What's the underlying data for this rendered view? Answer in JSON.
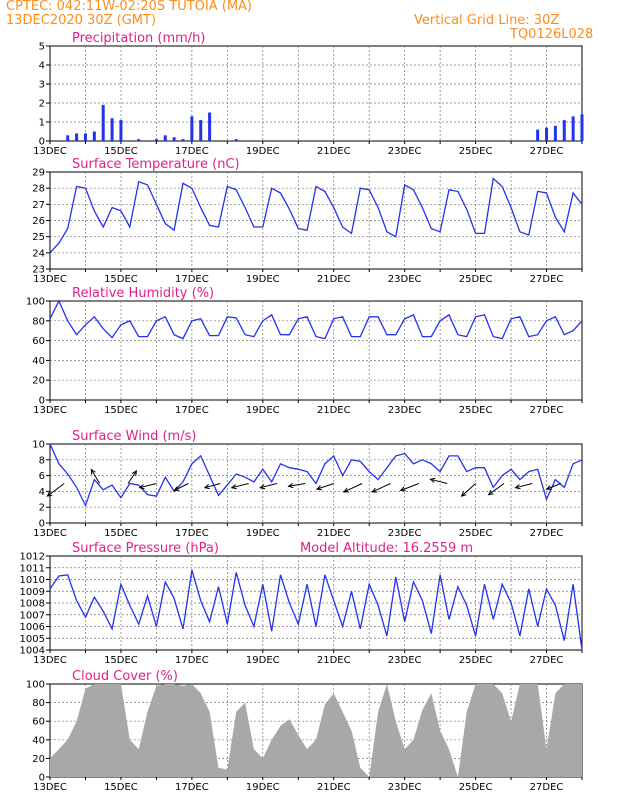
{
  "header": {
    "line1": "CPTEC:   042:11W-02:20S   TUTOIA (MA)",
    "line2": "13DEC2020 30Z (GMT)",
    "grid_note": "Vertical Grid Line: 30Z",
    "code": "TQ0126L028"
  },
  "colors": {
    "line": "#2233ee",
    "cloud": "#a8a8a8",
    "arrow": "#000000",
    "title": "#e0208a",
    "header": "#ff8c1a"
  },
  "chart_data": [
    {
      "id": "precip",
      "type": "bar",
      "title": "Precipitation (mm/h)",
      "ylim": [
        0,
        5
      ],
      "yticks": [
        "0",
        "1",
        "2",
        "3",
        "4",
        "5"
      ],
      "xticks": [
        "13DEC",
        "15DEC",
        "17DEC",
        "19DEC",
        "21DEC",
        "23DEC",
        "25DEC",
        "27DEC"
      ],
      "days": [
        0,
        0.25,
        0.5,
        0.75,
        1,
        1.25,
        1.5,
        1.75,
        2,
        2.25,
        2.5,
        2.75,
        3,
        3.25,
        3.5,
        3.75,
        4,
        4.25,
        4.5,
        4.75,
        5,
        5.25,
        5.5,
        5.75,
        6,
        6.25,
        6.5,
        6.75,
        7,
        7.25,
        7.5,
        7.75,
        8,
        8.25,
        8.5,
        8.75,
        9,
        9.25,
        9.5,
        9.75,
        10,
        10.25,
        10.5,
        10.75,
        11,
        11.25,
        11.5,
        11.75,
        12,
        12.25,
        12.5,
        12.75,
        13,
        13.25,
        13.5,
        13.75,
        14,
        14.25,
        14.5,
        14.75,
        15
      ],
      "values": [
        0,
        0,
        0.3,
        0.4,
        0.4,
        0.5,
        1.9,
        1.2,
        1.1,
        0,
        0.1,
        0,
        0.1,
        0.3,
        0.2,
        0.1,
        1.3,
        1.1,
        1.5,
        0,
        0,
        0.1,
        0,
        0,
        0,
        0,
        0,
        0,
        0,
        0,
        0,
        0,
        0,
        0,
        0,
        0,
        0,
        0,
        0,
        0,
        0,
        0,
        0,
        0,
        0,
        0,
        0,
        0,
        0,
        0,
        0,
        0,
        0,
        0,
        0,
        0.6,
        0.7,
        0.8,
        1.1,
        1.3,
        1.4
      ]
    },
    {
      "id": "temp",
      "type": "line",
      "title": "Surface Temperature (nC)",
      "ylim": [
        23,
        29
      ],
      "yticks": [
        "23",
        "24",
        "25",
        "26",
        "27",
        "28",
        "29"
      ],
      "xticks": [
        "13DEC",
        "15DEC",
        "17DEC",
        "19DEC",
        "21DEC",
        "23DEC",
        "25DEC",
        "27DEC"
      ],
      "days": [
        0,
        0.25,
        0.5,
        0.75,
        1,
        1.25,
        1.5,
        1.75,
        2,
        2.25,
        2.5,
        2.75,
        3,
        3.25,
        3.5,
        3.75,
        4,
        4.25,
        4.5,
        4.75,
        5,
        5.25,
        5.5,
        5.75,
        6,
        6.25,
        6.5,
        6.75,
        7,
        7.25,
        7.5,
        7.75,
        8,
        8.25,
        8.5,
        8.75,
        9,
        9.25,
        9.5,
        9.75,
        10,
        10.25,
        10.5,
        10.75,
        11,
        11.25,
        11.5,
        11.75,
        12,
        12.25,
        12.5,
        12.75,
        13,
        13.25,
        13.5,
        13.75,
        14,
        14.25,
        14.5,
        14.75,
        15
      ],
      "values": [
        24.0,
        24.6,
        25.5,
        28.1,
        28.0,
        26.6,
        25.6,
        26.8,
        26.6,
        25.6,
        28.4,
        28.2,
        27.0,
        25.8,
        25.4,
        28.3,
        28.0,
        26.8,
        25.7,
        25.6,
        28.1,
        27.9,
        26.8,
        25.6,
        25.6,
        28.0,
        27.7,
        26.7,
        25.5,
        25.4,
        28.1,
        27.8,
        26.8,
        25.6,
        25.2,
        28.0,
        27.9,
        26.8,
        25.3,
        25.0,
        28.2,
        27.9,
        26.8,
        25.5,
        25.3,
        27.9,
        27.8,
        26.7,
        25.2,
        25.2,
        28.6,
        28.1,
        26.8,
        25.3,
        25.1,
        27.8,
        27.7,
        26.2,
        25.3,
        27.7,
        27.0
      ]
    },
    {
      "id": "rh",
      "type": "line",
      "title": "Relative Humidity (%)",
      "ylim": [
        0,
        100
      ],
      "yticks": [
        "0",
        "20",
        "40",
        "60",
        "80",
        "100"
      ],
      "xticks": [
        "13DEC",
        "15DEC",
        "17DEC",
        "19DEC",
        "21DEC",
        "23DEC",
        "25DEC",
        "27DEC"
      ],
      "days": [
        0,
        0.25,
        0.5,
        0.75,
        1,
        1.25,
        1.5,
        1.75,
        2,
        2.25,
        2.5,
        2.75,
        3,
        3.25,
        3.5,
        3.75,
        4,
        4.25,
        4.5,
        4.75,
        5,
        5.25,
        5.5,
        5.75,
        6,
        6.25,
        6.5,
        6.75,
        7,
        7.25,
        7.5,
        7.75,
        8,
        8.25,
        8.5,
        8.75,
        9,
        9.25,
        9.5,
        9.75,
        10,
        10.25,
        10.5,
        10.75,
        11,
        11.25,
        11.5,
        11.75,
        12,
        12.25,
        12.5,
        12.75,
        13,
        13.25,
        13.5,
        13.75,
        14,
        14.25,
        14.5,
        14.75,
        15
      ],
      "values": [
        82,
        100,
        80,
        66,
        76,
        84,
        72,
        63,
        76,
        80,
        64,
        64,
        80,
        84,
        66,
        62,
        80,
        82,
        65,
        65,
        84,
        83,
        66,
        64,
        80,
        86,
        66,
        66,
        82,
        84,
        64,
        62,
        82,
        84,
        64,
        64,
        84,
        84,
        66,
        66,
        82,
        86,
        64,
        64,
        80,
        86,
        66,
        64,
        84,
        86,
        64,
        62,
        82,
        84,
        64,
        66,
        80,
        84,
        66,
        70,
        80
      ]
    },
    {
      "id": "wind",
      "type": "line",
      "title": "Surface Wind (m/s)",
      "ylim": [
        0,
        10
      ],
      "yticks": [
        "0",
        "2",
        "4",
        "6",
        "8",
        "10"
      ],
      "xticks": [
        "13DEC",
        "15DEC",
        "17DEC",
        "19DEC",
        "21DEC",
        "23DEC",
        "25DEC",
        "27DEC"
      ],
      "days": [
        0,
        0.25,
        0.5,
        0.75,
        1,
        1.25,
        1.5,
        1.75,
        2,
        2.25,
        2.5,
        2.75,
        3,
        3.25,
        3.5,
        3.75,
        4,
        4.25,
        4.5,
        4.75,
        5,
        5.25,
        5.5,
        5.75,
        6,
        6.25,
        6.5,
        6.75,
        7,
        7.25,
        7.5,
        7.75,
        8,
        8.25,
        8.5,
        8.75,
        9,
        9.25,
        9.5,
        9.75,
        10,
        10.25,
        10.5,
        10.75,
        11,
        11.25,
        11.5,
        11.75,
        12,
        12.25,
        12.5,
        12.75,
        13,
        13.25,
        13.5,
        13.75,
        14,
        14.25,
        14.5,
        14.75,
        15
      ],
      "values": [
        10,
        7.5,
        6.2,
        4.5,
        2.2,
        5.5,
        4.2,
        4.8,
        3.2,
        5.0,
        4.8,
        3.6,
        3.4,
        5.8,
        4.0,
        5.2,
        7.5,
        8.5,
        6.0,
        3.5,
        4.8,
        6.2,
        5.8,
        5.2,
        6.8,
        5.2,
        7.5,
        7.0,
        6.8,
        6.5,
        5.0,
        7.5,
        8.5,
        6.0,
        8.0,
        7.8,
        6.5,
        5.5,
        7.0,
        8.5,
        8.8,
        7.5,
        8.0,
        7.5,
        6.5,
        8.5,
        8.5,
        6.5,
        7.0,
        7.0,
        4.5,
        6.0,
        6.8,
        5.5,
        6.5,
        6.8,
        3.0,
        5.5,
        4.5,
        7.5,
        8.0
      ],
      "vectors": [
        [
          0.4,
          -1.2,
          0.9
        ],
        [
          1.4,
          -0.6,
          -1.0
        ],
        [
          2.2,
          0.6,
          -0.9
        ],
        [
          3.0,
          -1.2,
          0.3
        ],
        [
          3.9,
          -1.0,
          0.5
        ],
        [
          4.8,
          -1.1,
          0.3
        ],
        [
          5.6,
          -1.2,
          0.3
        ],
        [
          6.4,
          -1.2,
          0.3
        ],
        [
          7.2,
          -1.2,
          0.2
        ],
        [
          8.0,
          -1.2,
          0.4
        ],
        [
          8.8,
          -1.3,
          0.6
        ],
        [
          9.6,
          -1.3,
          0.6
        ],
        [
          10.4,
          -1.3,
          0.5
        ],
        [
          11.2,
          -1.2,
          -0.3
        ],
        [
          12.0,
          -1.0,
          0.9
        ],
        [
          12.8,
          -1.1,
          0.8
        ],
        [
          13.6,
          -1.2,
          0.3
        ],
        [
          14.4,
          -1.0,
          0.4
        ]
      ]
    },
    {
      "id": "pres",
      "type": "line",
      "title": "Surface Pressure (hPa)",
      "annotation": "Model Altitude: 16.2559 m",
      "ylim": [
        1004,
        1012
      ],
      "yticks": [
        "1004",
        "1005",
        "1006",
        "1007",
        "1008",
        "1009",
        "1010",
        "1011",
        "1012"
      ],
      "xticks": [
        "13DEC",
        "15DEC",
        "17DEC",
        "19DEC",
        "21DEC",
        "23DEC",
        "25DEC",
        "27DEC"
      ],
      "days": [
        0,
        0.25,
        0.5,
        0.75,
        1,
        1.25,
        1.5,
        1.75,
        2,
        2.25,
        2.5,
        2.75,
        3,
        3.25,
        3.5,
        3.75,
        4,
        4.25,
        4.5,
        4.75,
        5,
        5.25,
        5.5,
        5.75,
        6,
        6.25,
        6.5,
        6.75,
        7,
        7.25,
        7.5,
        7.75,
        8,
        8.25,
        8.5,
        8.75,
        9,
        9.25,
        9.5,
        9.75,
        10,
        10.25,
        10.5,
        10.75,
        11,
        11.25,
        11.5,
        11.75,
        12,
        12.25,
        12.5,
        12.75,
        13,
        13.25,
        13.5,
        13.75,
        14,
        14.25,
        14.5,
        14.75,
        15
      ],
      "values": [
        1009.2,
        1010.3,
        1010.4,
        1008.2,
        1006.8,
        1008.5,
        1007.3,
        1005.8,
        1009.6,
        1007.8,
        1006.2,
        1008.6,
        1006.0,
        1009.8,
        1008.4,
        1005.8,
        1010.8,
        1008.2,
        1006.4,
        1009.4,
        1006.2,
        1010.6,
        1007.8,
        1006.0,
        1009.6,
        1005.6,
        1010.4,
        1008.0,
        1006.2,
        1009.6,
        1006.0,
        1010.4,
        1008.2,
        1006.0,
        1009.0,
        1005.8,
        1009.6,
        1007.8,
        1005.2,
        1010.2,
        1006.4,
        1009.8,
        1008.2,
        1005.4,
        1010.4,
        1006.6,
        1009.4,
        1007.8,
        1005.2,
        1009.6,
        1006.6,
        1009.6,
        1008.0,
        1005.2,
        1009.2,
        1006.0,
        1009.2,
        1007.8,
        1004.8,
        1009.6,
        1004.0
      ]
    },
    {
      "id": "cloud",
      "type": "area",
      "title": "Cloud Cover (%)",
      "ylim": [
        0,
        100
      ],
      "yticks": [
        "0",
        "20",
        "40",
        "60",
        "80",
        "100"
      ],
      "xticks": [
        "13DEC",
        "15DEC",
        "17DEC",
        "19DEC",
        "21DEC",
        "23DEC",
        "25DEC",
        "27DEC"
      ],
      "days": [
        0,
        0.25,
        0.5,
        0.75,
        1,
        1.25,
        1.5,
        1.75,
        2,
        2.25,
        2.5,
        2.75,
        3,
        3.25,
        3.5,
        3.75,
        4,
        4.25,
        4.5,
        4.75,
        5,
        5.25,
        5.5,
        5.75,
        6,
        6.25,
        6.5,
        6.75,
        7,
        7.25,
        7.5,
        7.75,
        8,
        8.25,
        8.5,
        8.75,
        9,
        9.25,
        9.5,
        9.75,
        10,
        10.25,
        10.5,
        10.75,
        11,
        11.25,
        11.5,
        11.75,
        12,
        12.25,
        12.5,
        12.75,
        13,
        13.25,
        13.5,
        13.75,
        14,
        14.25,
        14.5,
        14.75,
        15
      ],
      "values": [
        20,
        30,
        40,
        60,
        95,
        100,
        100,
        100,
        100,
        40,
        30,
        70,
        98,
        100,
        100,
        98,
        100,
        90,
        70,
        10,
        8,
        70,
        80,
        30,
        20,
        40,
        55,
        62,
        45,
        30,
        40,
        78,
        90,
        70,
        50,
        10,
        0,
        70,
        100,
        60,
        30,
        40,
        72,
        90,
        50,
        30,
        0,
        70,
        100,
        100,
        100,
        90,
        60,
        100,
        100,
        100,
        30,
        90,
        100,
        100,
        100
      ]
    }
  ]
}
